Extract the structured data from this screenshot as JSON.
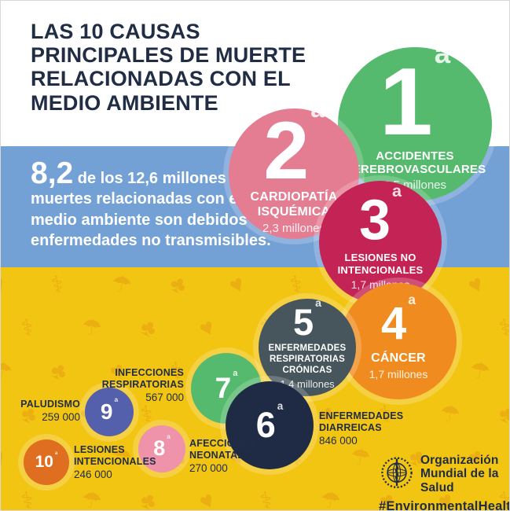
{
  "title": "LAS 10 CAUSAS\nPRINCIPALES DE MUERTE\nRELACIONADAS CON EL\nMEDIO AMBIENTE",
  "intro": {
    "stat_big": "8,2",
    "text_1": " de los ",
    "stat_bold": "12,6 millones",
    "text_2": " de muertes relacionadas con el medio ambiente son debidos a enfermedades no transmisibles."
  },
  "causes": [
    {
      "rank": "1",
      "sup": "a",
      "name": "ACCIDENTES CEREBROVASCULARES",
      "value": "2,5 millones",
      "color": "#56ba6e"
    },
    {
      "rank": "2",
      "sup": "a",
      "name": "CARDIOPATÍA ISQUÉMICA",
      "value": "2,3 millones",
      "color": "#e57d92"
    },
    {
      "rank": "3",
      "sup": "a",
      "name": "LESIONES NO INTENCIONALES",
      "value": "1,7 millones",
      "color": "#c42455"
    },
    {
      "rank": "4",
      "sup": "a",
      "name": "CÁNCER",
      "value": "1,7 millones",
      "color": "#f08c1f"
    },
    {
      "rank": "5",
      "sup": "a",
      "name": "ENFERMEDADES RESPIRATORIAS CRÓNICAS",
      "value": "1.4 millones",
      "color": "#47565c"
    },
    {
      "rank": "6",
      "sup": "a",
      "name": "ENFERMEDADES DIARREICAS",
      "value": "846 000",
      "color": "#1f2b44"
    },
    {
      "rank": "7",
      "sup": "a",
      "name": "INFECCIONES RESPIRATORIAS",
      "value": "567 000",
      "color": "#56ba6e"
    },
    {
      "rank": "8",
      "sup": "a",
      "name": "AFECCIONES NEONATALES",
      "value": "270 000",
      "color": "#ee93a9"
    },
    {
      "rank": "9",
      "sup": "a",
      "name": "PALUDISMO",
      "value": "259 000",
      "color": "#5560ac"
    },
    {
      "rank": "10",
      "sup": "a",
      "name": "LESIONES INTENCIONALES",
      "value": "246 000",
      "color": "#e06e20"
    }
  ],
  "footer": {
    "org_name": "Organización\nMundial de la Salud",
    "hashtag": "#EnvironmentalHealth"
  },
  "colors": {
    "navy_text": "#212d45",
    "band_blue": "#73a1d6",
    "band_yellow": "#f3c513",
    "pattern_icon": "#e2960f"
  },
  "background_icon_glyphs": [
    "♥",
    "⚕",
    "☂",
    "♣"
  ],
  "chart_data": {
    "type": "table",
    "title": "LAS 10 CAUSAS PRINCIPALES DE MUERTE RELACIONADAS CON EL MEDIO AMBIENTE",
    "annotation": "8,2 de los 12,6 millones de muertes relacionadas con el medio ambiente son debidos a enfermedades no transmisibles.",
    "categories": [
      "ACCIDENTES CEREBROVASCULARES",
      "CARDIOPATÍA ISQUÉMICA",
      "LESIONES NO INTENCIONALES",
      "CÁNCER",
      "ENFERMEDADES RESPIRATORIAS CRÓNICAS",
      "ENFERMEDADES DIARREICAS",
      "INFECCIONES RESPIRATORIAS",
      "AFECCIONES NEONATALES",
      "PALUDISMO",
      "LESIONES INTENCIONALES"
    ],
    "values_label": [
      "2,5 millones",
      "2,3 millones",
      "1,7 millones",
      "1,7 millones",
      "1.4 millones",
      "846 000",
      "567 000",
      "270 000",
      "259 000",
      "246 000"
    ],
    "values": [
      2500000,
      2300000,
      1700000,
      1700000,
      1400000,
      846000,
      567000,
      270000,
      259000,
      246000
    ],
    "ranks": [
      1,
      2,
      3,
      4,
      5,
      6,
      7,
      8,
      9,
      10
    ]
  }
}
